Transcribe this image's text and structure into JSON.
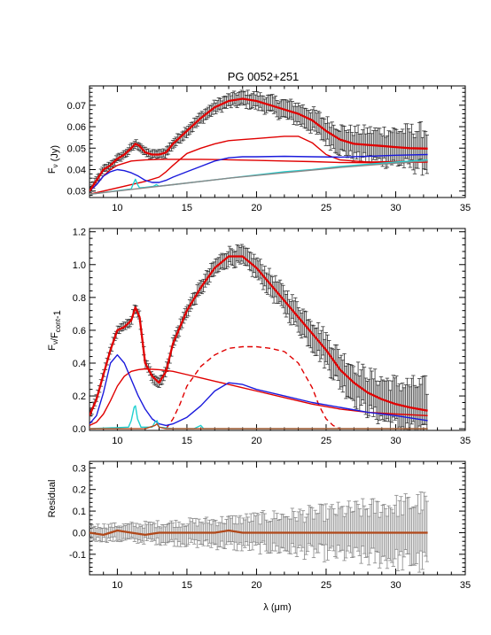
{
  "title": "PG 0052+251",
  "xlabel": "λ (μm)",
  "colors": {
    "data": "#333333",
    "data_residual": "#888888",
    "total_fit": "#e00000",
    "blue_component": "#1a1adc",
    "cyan_component": "#20d0d0",
    "residual_fit": "#b0481a"
  },
  "chart_data": [
    {
      "type": "line",
      "panel": "top",
      "ylabel": "F_ν (Jy)",
      "xlim": [
        8,
        35
      ],
      "ylim": [
        0.027,
        0.079
      ],
      "x_ticks": [
        10,
        15,
        20,
        25,
        30,
        35
      ],
      "y_ticks": [
        0.03,
        0.04,
        0.05,
        0.06,
        0.07
      ],
      "y_tick_labels": [
        "0.03",
        "0.04",
        "0.05",
        "0.06",
        "0.07"
      ],
      "series": [
        {
          "role": "total-fit",
          "style": "solid-thick",
          "color": "#e00000",
          "x": [
            8,
            8.5,
            9,
            9.5,
            10,
            10.5,
            11,
            11.3,
            11.6,
            12,
            12.5,
            13,
            13.5,
            14,
            15,
            16,
            17,
            18,
            19,
            20,
            21,
            22,
            23,
            24,
            25,
            26,
            27,
            28,
            29,
            30,
            31,
            32.3
          ],
          "y": [
            0.03,
            0.035,
            0.04,
            0.042,
            0.045,
            0.047,
            0.05,
            0.052,
            0.051,
            0.048,
            0.047,
            0.047,
            0.048,
            0.052,
            0.058,
            0.064,
            0.069,
            0.072,
            0.073,
            0.072,
            0.07,
            0.068,
            0.066,
            0.063,
            0.058,
            0.054,
            0.052,
            0.0515,
            0.051,
            0.0505,
            0.05,
            0.0498
          ]
        },
        {
          "role": "red-component-1",
          "style": "solid",
          "color": "#e00000",
          "x": [
            8,
            8.5,
            9,
            9.5,
            10,
            11,
            12,
            13,
            14,
            15,
            16,
            18,
            20,
            22,
            24,
            26,
            28,
            30,
            32.3
          ],
          "y": [
            0.03,
            0.033,
            0.037,
            0.04,
            0.042,
            0.044,
            0.0445,
            0.0448,
            0.0448,
            0.0448,
            0.0448,
            0.0446,
            0.0443,
            0.044,
            0.0437,
            0.0433,
            0.0432,
            0.0433,
            0.0435
          ]
        },
        {
          "role": "red-component-2",
          "style": "solid",
          "color": "#e00000",
          "x": [
            8,
            12,
            13,
            13.5,
            14,
            15,
            16,
            17,
            18,
            19,
            20,
            21,
            22,
            23,
            24,
            25,
            26,
            28,
            30,
            32.3
          ],
          "y": [
            0.0285,
            0.0345,
            0.0365,
            0.039,
            0.042,
            0.0475,
            0.05,
            0.052,
            0.0535,
            0.054,
            0.0545,
            0.055,
            0.0555,
            0.0555,
            0.0525,
            0.047,
            0.0445,
            0.0435,
            0.0437,
            0.044
          ]
        },
        {
          "role": "blue-component",
          "style": "solid",
          "color": "#1a1adc",
          "x": [
            8,
            8.5,
            9,
            9.5,
            10,
            10.5,
            11,
            11.5,
            12,
            12.5,
            13,
            13.5,
            14,
            15,
            16,
            17,
            18,
            19,
            20,
            22,
            24,
            26,
            28,
            30,
            32.3
          ],
          "y": [
            0.03,
            0.033,
            0.037,
            0.039,
            0.04,
            0.0395,
            0.0385,
            0.037,
            0.035,
            0.034,
            0.034,
            0.035,
            0.0365,
            0.039,
            0.0415,
            0.044,
            0.0455,
            0.046,
            0.046,
            0.0462,
            0.046,
            0.0458,
            0.0462,
            0.0467,
            0.047
          ]
        },
        {
          "role": "cyan-component",
          "style": "solid",
          "color": "#20d0d0",
          "x": [
            8,
            11,
            11.15,
            11.3,
            11.45,
            11.6,
            12,
            12.6,
            12.8,
            13,
            14,
            16,
            18,
            20,
            22,
            24,
            26,
            28,
            30,
            32.3
          ],
          "y": [
            0.0285,
            0.031,
            0.0335,
            0.0355,
            0.033,
            0.0315,
            0.0317,
            0.0322,
            0.033,
            0.0323,
            0.033,
            0.0345,
            0.036,
            0.0375,
            0.039,
            0.04,
            0.0415,
            0.0425,
            0.0435,
            0.0445
          ]
        },
        {
          "role": "grey-continuum",
          "style": "solid",
          "color": "#888888",
          "x": [
            8,
            10,
            14,
            18,
            22,
            26,
            30,
            32.3
          ],
          "y": [
            0.0285,
            0.03,
            0.033,
            0.036,
            0.0385,
            0.041,
            0.043,
            0.044
          ]
        }
      ]
    },
    {
      "type": "line",
      "panel": "middle",
      "ylabel": "F_ν/F_cont-1",
      "xlim": [
        8,
        35
      ],
      "ylim": [
        -0.01,
        1.22
      ],
      "x_ticks": [
        10,
        15,
        20,
        25,
        30,
        35
      ],
      "y_ticks": [
        0.0,
        0.2,
        0.4,
        0.6,
        0.8,
        1.0,
        1.2
      ],
      "y_tick_labels": [
        "0.0",
        "0.2",
        "0.4",
        "0.6",
        "0.8",
        "1.0",
        "1.2"
      ],
      "series": [
        {
          "role": "total-fit",
          "style": "solid-thick",
          "color": "#e00000",
          "x": [
            8,
            8.5,
            9,
            9.5,
            10,
            10.5,
            11,
            11.3,
            11.6,
            12,
            12.5,
            13,
            13.5,
            14,
            15,
            16,
            17,
            18,
            19,
            20,
            21,
            22,
            23,
            24,
            25,
            26,
            27,
            28,
            29,
            30,
            31,
            32.3
          ],
          "y": [
            0.08,
            0.18,
            0.33,
            0.48,
            0.6,
            0.62,
            0.66,
            0.74,
            0.68,
            0.4,
            0.32,
            0.28,
            0.35,
            0.52,
            0.72,
            0.86,
            0.98,
            1.05,
            1.05,
            0.98,
            0.88,
            0.78,
            0.68,
            0.58,
            0.48,
            0.36,
            0.28,
            0.22,
            0.18,
            0.15,
            0.13,
            0.11
          ]
        },
        {
          "role": "red-component-1",
          "style": "solid",
          "color": "#e00000",
          "x": [
            8,
            8.5,
            9,
            9.5,
            10,
            10.5,
            11,
            11.5,
            12,
            13,
            14,
            15,
            16,
            17,
            18,
            19,
            20,
            22,
            24,
            26,
            28,
            30,
            32.3
          ],
          "y": [
            0.02,
            0.04,
            0.09,
            0.17,
            0.26,
            0.32,
            0.35,
            0.36,
            0.365,
            0.36,
            0.35,
            0.33,
            0.31,
            0.29,
            0.27,
            0.25,
            0.23,
            0.19,
            0.15,
            0.12,
            0.1,
            0.09,
            0.08
          ]
        },
        {
          "role": "red-dashed-component",
          "style": "dashed",
          "color": "#e00000",
          "x": [
            13.5,
            14,
            14.5,
            15,
            16,
            17,
            18,
            19,
            20,
            21,
            22,
            23,
            24,
            24.5,
            25,
            25.5,
            26
          ],
          "y": [
            0.0,
            0.06,
            0.15,
            0.26,
            0.38,
            0.45,
            0.49,
            0.5,
            0.5,
            0.49,
            0.47,
            0.4,
            0.25,
            0.14,
            0.06,
            0.02,
            0.0
          ]
        },
        {
          "role": "blue-component",
          "style": "solid",
          "color": "#1a1adc",
          "x": [
            8,
            8.5,
            9,
            9.5,
            10,
            10.5,
            11,
            11.5,
            12,
            12.5,
            13,
            13.5,
            14,
            15,
            16,
            17,
            18,
            19,
            20,
            22,
            24,
            26,
            28,
            30,
            32.3
          ],
          "y": [
            0.03,
            0.08,
            0.22,
            0.4,
            0.45,
            0.4,
            0.3,
            0.2,
            0.12,
            0.06,
            0.03,
            0.02,
            0.03,
            0.07,
            0.14,
            0.23,
            0.28,
            0.27,
            0.24,
            0.2,
            0.16,
            0.13,
            0.1,
            0.08,
            0.05
          ]
        },
        {
          "role": "cyan-component",
          "style": "solid",
          "color": "#20d0d0",
          "x": [
            8,
            10.8,
            11.0,
            11.2,
            11.3,
            11.45,
            11.7,
            12.5,
            12.7,
            12.85,
            13.0,
            14,
            15.5,
            16,
            16.2,
            17,
            20,
            25,
            30,
            32.3
          ],
          "y": [
            0.0,
            0.01,
            0.05,
            0.13,
            0.14,
            0.06,
            0.01,
            0.01,
            0.04,
            0.05,
            0.01,
            0.0,
            0.0,
            0.02,
            0.0,
            0.0,
            0.0,
            0.0,
            0.0,
            0.0
          ]
        },
        {
          "role": "brown-component",
          "style": "solid",
          "color": "#b0481a",
          "x": [
            8,
            12,
            12.7,
            12.85,
            13.0,
            13.5,
            20,
            32.3
          ],
          "y": [
            0.0,
            0.0,
            0.02,
            0.03,
            0.01,
            0.0,
            0.0,
            0.0
          ]
        }
      ]
    },
    {
      "type": "line",
      "panel": "bottom",
      "ylabel": "Residual",
      "xlim": [
        8,
        35
      ],
      "ylim": [
        -0.195,
        0.33
      ],
      "x_ticks": [
        10,
        15,
        20,
        25,
        30,
        35
      ],
      "y_ticks": [
        -0.1,
        0.0,
        0.1,
        0.2,
        0.3
      ],
      "y_tick_labels": [
        "-0.1",
        "0.0",
        "0.1",
        "0.2",
        "0.3"
      ],
      "series": [
        {
          "role": "residual-fit",
          "style": "solid-thick",
          "color": "#b0481a",
          "x": [
            8,
            9,
            10,
            11,
            12,
            13,
            14,
            15,
            16,
            17,
            18,
            19,
            20,
            22,
            24,
            26,
            28,
            30,
            32.3
          ],
          "y": [
            0.0,
            -0.01,
            0.01,
            0.0,
            -0.01,
            0.0,
            0.0,
            0.0,
            0.0,
            0.0,
            0.01,
            0.0,
            0.0,
            0.0,
            0.0,
            0.0,
            0.0,
            0.0,
            0.0
          ]
        }
      ]
    }
  ]
}
